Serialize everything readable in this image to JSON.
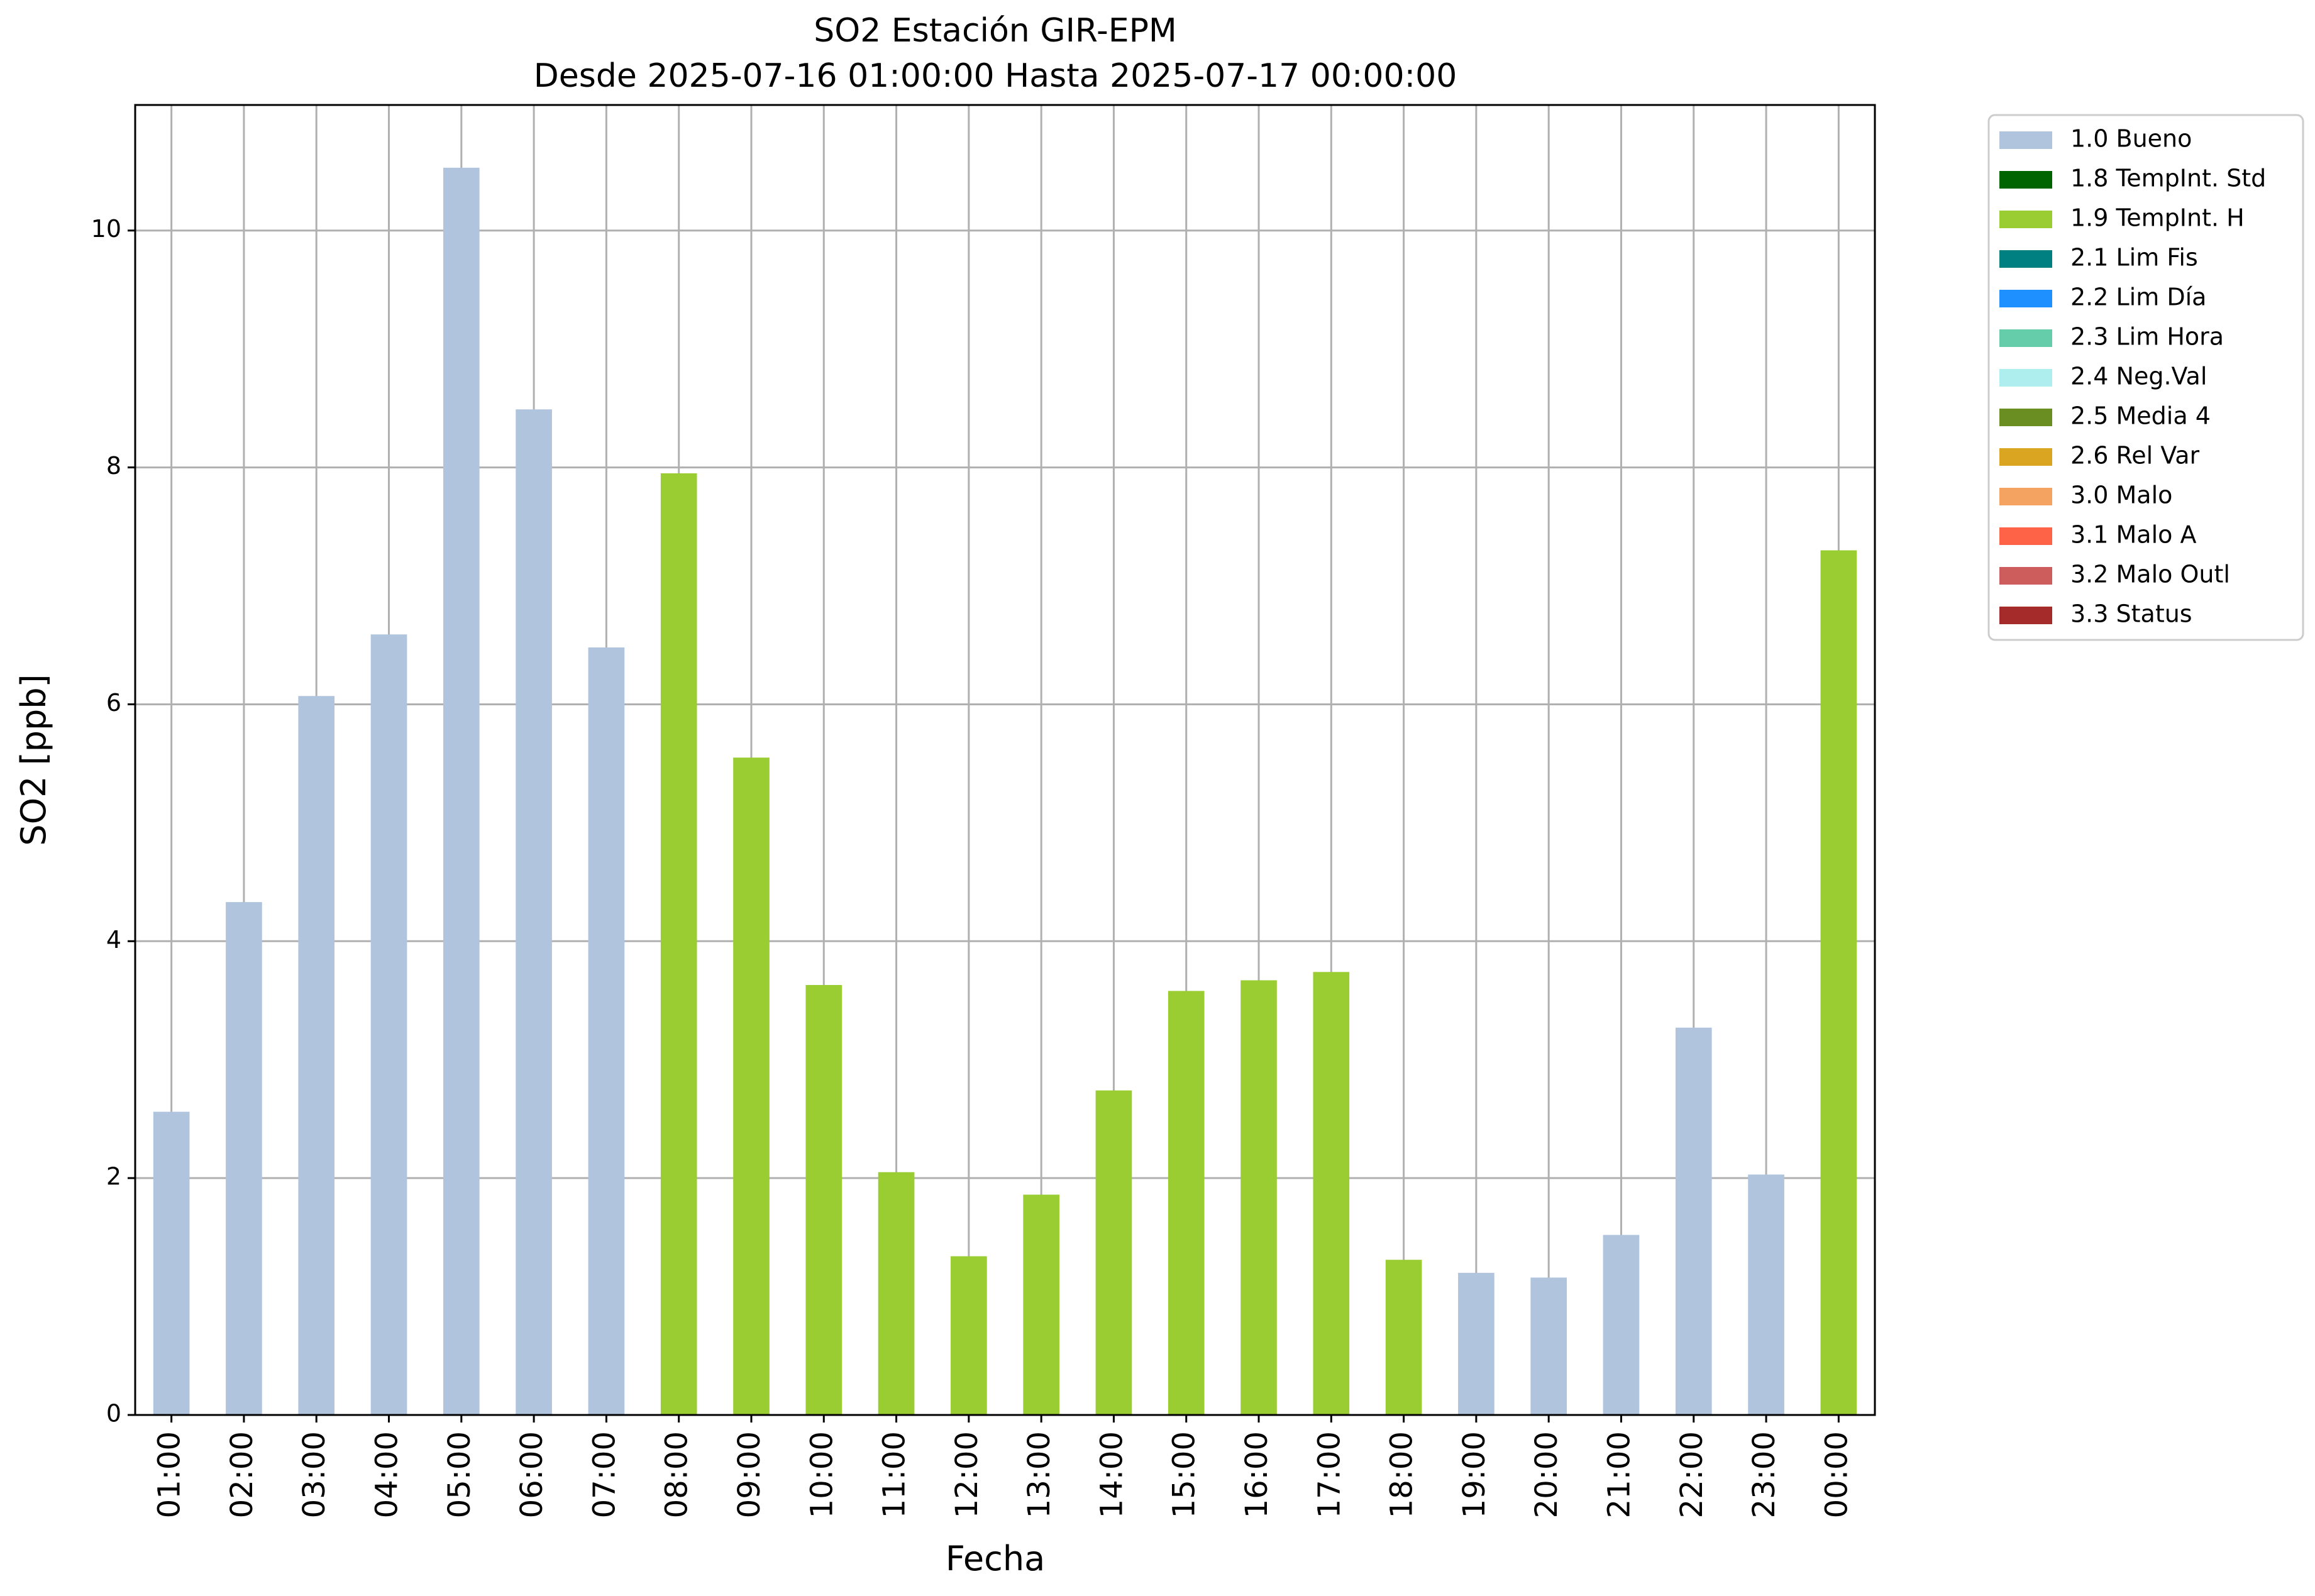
{
  "chart_data": {
    "type": "bar",
    "title_line1": "SO2 Estación GIR-EPM",
    "title_line2": "Desde 2025-07-16 01:00:00 Hasta 2025-07-17 00:00:00",
    "xlabel": "Fecha",
    "ylabel": "SO2 [ppb]",
    "ylim": [
      0,
      11.06
    ],
    "yticks": [
      0,
      2,
      4,
      6,
      8,
      10
    ],
    "grid": true,
    "legend_position": "outside-top-right",
    "categories": [
      "01:00",
      "02:00",
      "03:00",
      "04:00",
      "05:00",
      "06:00",
      "07:00",
      "08:00",
      "09:00",
      "10:00",
      "11:00",
      "12:00",
      "13:00",
      "14:00",
      "15:00",
      "16:00",
      "17:00",
      "18:00",
      "19:00",
      "20:00",
      "21:00",
      "22:00",
      "23:00",
      "00:00"
    ],
    "values": [
      2.56,
      4.33,
      6.07,
      6.59,
      10.53,
      8.49,
      6.48,
      7.95,
      5.55,
      3.63,
      2.05,
      1.34,
      1.86,
      2.74,
      3.58,
      3.67,
      3.74,
      1.31,
      1.2,
      1.16,
      1.52,
      3.27,
      2.03,
      7.3
    ],
    "flags": [
      "1.0 Bueno",
      "1.0 Bueno",
      "1.0 Bueno",
      "1.0 Bueno",
      "1.0 Bueno",
      "1.0 Bueno",
      "1.0 Bueno",
      "1.9 TempInt. H",
      "1.9 TempInt. H",
      "1.9 TempInt. H",
      "1.9 TempInt. H",
      "1.9 TempInt. H",
      "1.9 TempInt. H",
      "1.9 TempInt. H",
      "1.9 TempInt. H",
      "1.9 TempInt. H",
      "1.9 TempInt. H",
      "1.9 TempInt. H",
      "1.0 Bueno",
      "1.0 Bueno",
      "1.0 Bueno",
      "1.0 Bueno",
      "1.0 Bueno",
      "1.9 TempInt. H"
    ],
    "legend": [
      {
        "label": "1.0 Bueno",
        "color": "#b0c4de"
      },
      {
        "label": "1.8 TempInt. Std",
        "color": "#006400"
      },
      {
        "label": "1.9 TempInt. H",
        "color": "#9acd32"
      },
      {
        "label": "2.1 Lim Fis",
        "color": "#008080"
      },
      {
        "label": "2.2 Lim Día",
        "color": "#1e90ff"
      },
      {
        "label": "2.3 Lim Hora",
        "color": "#66cdaa"
      },
      {
        "label": "2.4 Neg.Val",
        "color": "#afeeee"
      },
      {
        "label": "2.5 Media 4",
        "color": "#6b8e23"
      },
      {
        "label": "2.6 Rel Var",
        "color": "#daa520"
      },
      {
        "label": "3.0 Malo",
        "color": "#f4a460"
      },
      {
        "label": "3.1 Malo A",
        "color": "#ff6347"
      },
      {
        "label": "3.2 Malo Outl",
        "color": "#cd5c5c"
      },
      {
        "label": "3.3 Status",
        "color": "#a52a2a"
      }
    ]
  }
}
